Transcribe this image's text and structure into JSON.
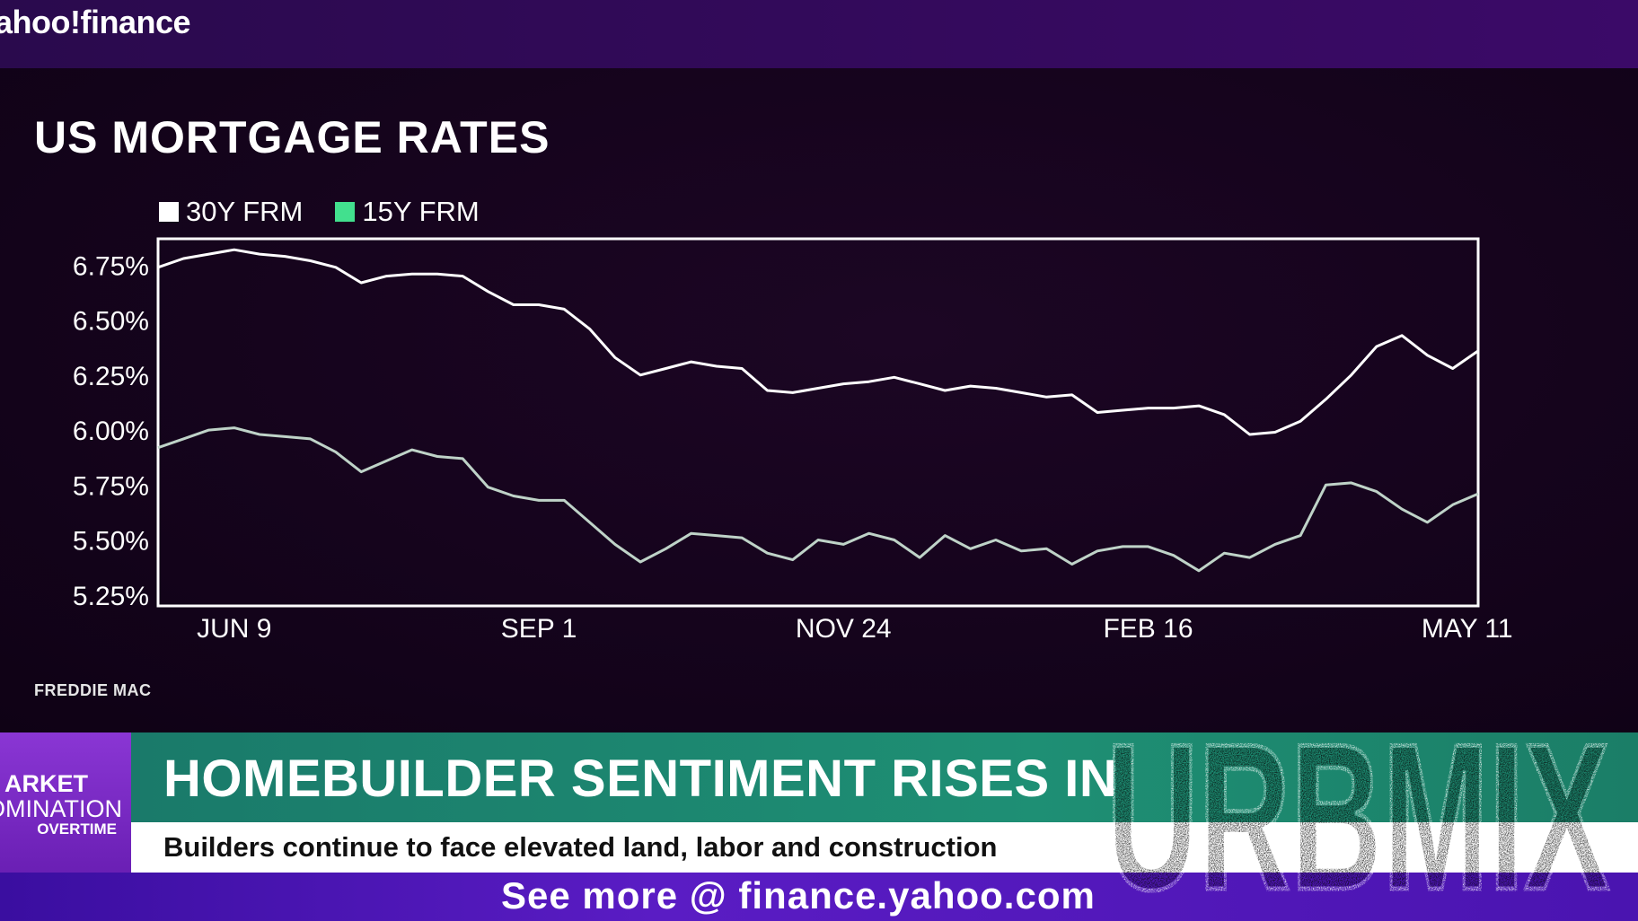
{
  "header": {
    "logo_text": "ahoo!finance"
  },
  "colors": {
    "series_30y": "#ffffff",
    "series_15y": "#42e08e",
    "accent": "#3b0a68",
    "headline_bg": "#1e8f74"
  },
  "chart_data": {
    "type": "line",
    "title": "US MORTGAGE RATES",
    "source": "FREDDIE MAC",
    "legend_position": "top-left",
    "grid": false,
    "xlabel": "",
    "ylabel": "",
    "x_ticks": [
      "JUN 9",
      "SEP 1",
      "NOV 24",
      "FEB 16",
      "MAY 11"
    ],
    "y_ticks": [
      "6.75%",
      "6.50%",
      "6.25%",
      "6.00%",
      "5.75%",
      "5.50%",
      "5.25%"
    ],
    "ylim": [
      5.2,
      6.87
    ],
    "x": [
      "2022-05-19",
      "2022-05-26",
      "2022-06-02",
      "2022-06-09",
      "2022-06-16",
      "2022-06-23",
      "2022-06-30",
      "2022-07-07",
      "2022-07-14",
      "2022-07-21",
      "2022-07-28",
      "2022-08-04",
      "2022-08-11",
      "2022-08-18",
      "2022-08-25",
      "2022-09-01",
      "2022-09-08",
      "2022-09-15",
      "2022-09-22",
      "2022-09-29",
      "2022-10-06",
      "2022-10-13",
      "2022-10-20",
      "2022-10-27",
      "2022-11-03",
      "2022-11-10",
      "2022-11-17",
      "2022-11-24",
      "2022-12-01",
      "2022-12-08",
      "2022-12-15",
      "2022-12-22",
      "2022-12-29",
      "2023-01-05",
      "2023-01-12",
      "2023-01-19",
      "2023-01-26",
      "2023-02-02",
      "2023-02-09",
      "2023-02-16",
      "2023-02-23",
      "2023-03-02",
      "2023-03-09",
      "2023-03-16",
      "2023-03-23",
      "2023-03-30",
      "2023-04-06",
      "2023-04-13",
      "2023-04-20",
      "2023-04-27",
      "2023-05-04",
      "2023-05-11",
      "2023-05-18"
    ],
    "series": [
      {
        "name": "30Y FRM",
        "color": "#ffffff",
        "values": [
          6.74,
          6.78,
          6.8,
          6.82,
          6.8,
          6.79,
          6.77,
          6.74,
          6.67,
          6.7,
          6.71,
          6.71,
          6.7,
          6.63,
          6.57,
          6.57,
          6.55,
          6.46,
          6.33,
          6.25,
          6.28,
          6.31,
          6.29,
          6.28,
          6.18,
          6.17,
          6.19,
          6.21,
          6.22,
          6.24,
          6.21,
          6.18,
          6.2,
          6.19,
          6.17,
          6.15,
          6.16,
          6.08,
          6.09,
          6.1,
          6.1,
          6.11,
          6.07,
          5.98,
          5.99,
          6.04,
          6.14,
          6.25,
          6.38,
          6.43,
          6.34,
          6.28,
          6.36
        ]
      },
      {
        "name": "15Y FRM",
        "color": "#42e08e",
        "values": [
          5.92,
          5.96,
          6.0,
          6.01,
          5.98,
          5.97,
          5.96,
          5.9,
          5.81,
          5.86,
          5.91,
          5.88,
          5.87,
          5.74,
          5.7,
          5.68,
          5.68,
          5.58,
          5.48,
          5.4,
          5.46,
          5.53,
          5.52,
          5.51,
          5.44,
          5.41,
          5.5,
          5.48,
          5.53,
          5.5,
          5.42,
          5.52,
          5.46,
          5.5,
          5.45,
          5.46,
          5.39,
          5.45,
          5.47,
          5.47,
          5.43,
          5.36,
          5.44,
          5.42,
          5.48,
          5.52,
          5.75,
          5.76,
          5.72,
          5.64,
          5.58,
          5.66,
          5.71
        ]
      }
    ]
  },
  "lower_third": {
    "show_line1": "ARKET",
    "show_line2": "OMINATION",
    "show_line3": "OVERTIME",
    "headline": "HOMEBUILDER SENTIMENT RISES IN",
    "subline": "Builders continue to face elevated land, labor and construction"
  },
  "footer": {
    "text": "See more @ finance.yahoo.com"
  },
  "watermark": {
    "text": "URBMIX"
  }
}
